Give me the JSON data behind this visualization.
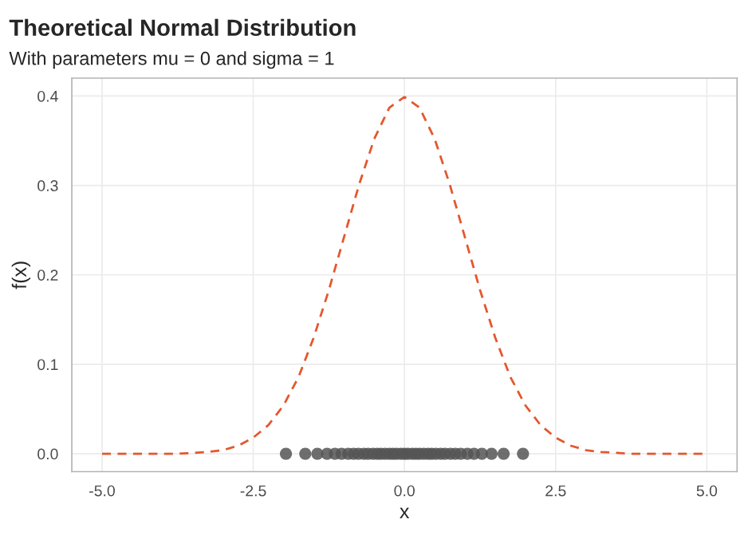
{
  "chart_data": {
    "type": "line",
    "title": "Theoretical Normal Distribution",
    "subtitle": "With parameters mu = 0 and sigma = 1",
    "xlabel": "x",
    "ylabel": "f(x)",
    "series": [
      {
        "color": "#e4572e",
        "line_style": "dashed",
        "marker": "none",
        "x": [
          -5,
          -4.75,
          -4.5,
          -4.25,
          -4,
          -3.75,
          -3.5,
          -3.25,
          -3,
          -2.75,
          -2.5,
          -2.25,
          -2,
          -1.75,
          -1.5,
          -1.25,
          -1,
          -0.75,
          -0.5,
          -0.25,
          0,
          0.25,
          0.5,
          0.75,
          1,
          1.25,
          1.5,
          1.75,
          2,
          2.25,
          2.5,
          2.75,
          3,
          3.25,
          3.5,
          3.75,
          4,
          4.25,
          4.5,
          4.75,
          5
        ],
        "values": [
          0,
          0,
          0,
          0,
          0,
          0,
          0.001,
          0.002,
          0.004,
          0.009,
          0.018,
          0.032,
          0.054,
          0.086,
          0.13,
          0.183,
          0.242,
          0.301,
          0.352,
          0.387,
          0.399,
          0.387,
          0.352,
          0.301,
          0.242,
          0.183,
          0.13,
          0.086,
          0.054,
          0.032,
          0.018,
          0.009,
          0.004,
          0.002,
          0.001,
          0,
          0,
          0,
          0,
          0,
          0
        ]
      },
      {
        "type": "scatter",
        "color": "#555555",
        "marker": "circle",
        "x": [
          -1.96,
          -1.64,
          -1.44,
          -1.28,
          -1.15,
          -1.04,
          -0.93,
          -0.84,
          -0.76,
          -0.67,
          -0.6,
          -0.52,
          -0.45,
          -0.39,
          -0.32,
          -0.25,
          -0.19,
          -0.13,
          -0.06,
          0,
          0.06,
          0.13,
          0.19,
          0.25,
          0.32,
          0.39,
          0.45,
          0.52,
          0.6,
          0.67,
          0.76,
          0.84,
          0.93,
          1.04,
          1.15,
          1.28,
          1.44,
          1.64,
          1.96
        ],
        "values": [
          0,
          0,
          0,
          0,
          0,
          0,
          0,
          0,
          0,
          0,
          0,
          0,
          0,
          0,
          0,
          0,
          0,
          0,
          0,
          0,
          0,
          0,
          0,
          0,
          0,
          0,
          0,
          0,
          0,
          0,
          0,
          0,
          0,
          0,
          0,
          0,
          0,
          0,
          0
        ]
      }
    ],
    "xlim": [
      -5.5,
      5.5
    ],
    "ylim": [
      -0.02,
      0.42
    ],
    "xticks": [
      {
        "value": -5,
        "label": "-5.0"
      },
      {
        "value": -2.5,
        "label": "-2.5"
      },
      {
        "value": 0,
        "label": "0.0"
      },
      {
        "value": 2.5,
        "label": "2.5"
      },
      {
        "value": 5,
        "label": "5.0"
      }
    ],
    "yticks": [
      {
        "value": 0,
        "label": "0.0"
      },
      {
        "value": 0.1,
        "label": "0.1"
      },
      {
        "value": 0.2,
        "label": "0.2"
      },
      {
        "value": 0.3,
        "label": "0.3"
      },
      {
        "value": 0.4,
        "label": "0.4"
      }
    ],
    "grid": true,
    "legend": false
  }
}
